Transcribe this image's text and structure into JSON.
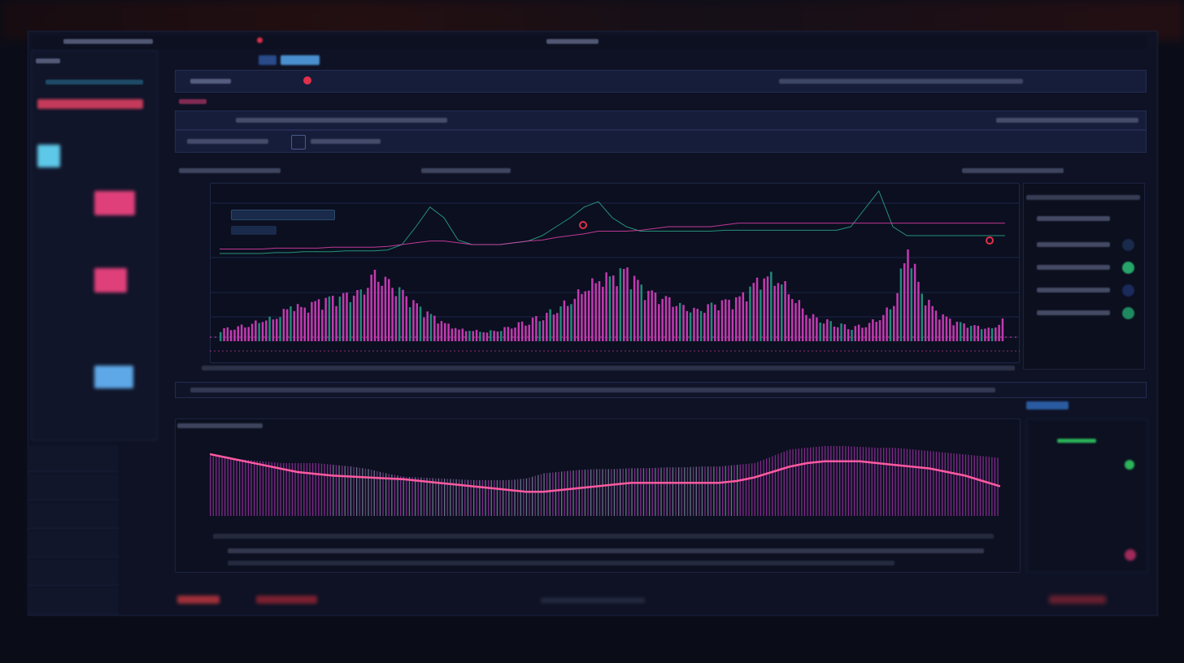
{
  "colors": {
    "accent_pink": "#e040a8",
    "accent_teal": "#2aa88a",
    "bar_pink": "#c23ab0",
    "bar_teal": "#1f8a78",
    "line_pink": "#ff5aa0",
    "bg": "#0e1224",
    "red": "#e0304a",
    "green": "#2bb45a"
  },
  "icons": [
    "chart-icon",
    "draw-icon",
    "layout-icon",
    "settings-icon",
    "refresh-icon",
    "play-icon"
  ],
  "right_panel": {
    "status_dots": [
      "#1a2a4a",
      "#26a46a",
      "#1a2a5a",
      "#1f8a60"
    ]
  },
  "chart_data": [
    {
      "type": "bar",
      "title": "",
      "values": [
        10,
        12,
        14,
        18,
        20,
        30,
        28,
        34,
        36,
        38,
        40,
        55,
        48,
        40,
        30,
        22,
        15,
        10,
        9,
        8,
        10,
        14,
        18,
        22,
        28,
        35,
        45,
        52,
        55,
        60,
        45,
        38,
        34,
        28,
        25,
        30,
        33,
        36,
        48,
        55,
        50,
        35,
        22,
        18,
        15,
        12,
        14,
        20,
        32,
        80,
        40,
        25,
        18,
        14,
        12,
        10,
        20
      ],
      "series": [
        {
          "kind": "line",
          "color": "teal",
          "values": [
            30,
            30,
            30,
            30,
            31,
            31,
            32,
            32,
            32,
            33,
            33,
            33,
            34,
            40,
            60,
            82,
            70,
            45,
            40,
            40,
            40,
            42,
            44,
            50,
            60,
            70,
            82,
            88,
            70,
            60,
            55,
            55,
            55,
            55,
            55,
            55,
            56,
            56,
            56,
            56,
            56,
            56,
            56,
            56,
            56,
            60,
            80,
            100,
            60,
            50,
            50,
            50,
            50,
            50,
            50,
            50,
            50
          ]
        },
        {
          "kind": "line",
          "color": "pink",
          "values": [
            35,
            35,
            35,
            35,
            36,
            36,
            36,
            36,
            37,
            37,
            37,
            37,
            38,
            40,
            42,
            44,
            44,
            42,
            40,
            40,
            40,
            42,
            44,
            45,
            48,
            50,
            52,
            55,
            55,
            55,
            56,
            58,
            60,
            60,
            60,
            60,
            62,
            64,
            64,
            64,
            64,
            64,
            64,
            64,
            64,
            64,
            64,
            64,
            64,
            64,
            64,
            64,
            64,
            64,
            64,
            64,
            64
          ]
        }
      ]
    },
    {
      "type": "bar",
      "title": "",
      "values": [
        70,
        68,
        66,
        64,
        62,
        62,
        62,
        60,
        58,
        55,
        50,
        46,
        45,
        44,
        43,
        42,
        42,
        42,
        44,
        50,
        52,
        54,
        55,
        55,
        56,
        56,
        57,
        57,
        58,
        58,
        60,
        62,
        70,
        78,
        80,
        82,
        82,
        81,
        80,
        80,
        78,
        76,
        74,
        72,
        70,
        68
      ],
      "series": [
        {
          "kind": "line",
          "color": "pink",
          "values": [
            60,
            56,
            52,
            48,
            44,
            40,
            38,
            36,
            35,
            34,
            33,
            32,
            30,
            28,
            26,
            24,
            22,
            20,
            18,
            18,
            20,
            22,
            24,
            26,
            28,
            28,
            28,
            28,
            28,
            28,
            30,
            34,
            40,
            46,
            50,
            52,
            52,
            52,
            50,
            48,
            46,
            44,
            40,
            36,
            30,
            24
          ]
        }
      ]
    }
  ]
}
